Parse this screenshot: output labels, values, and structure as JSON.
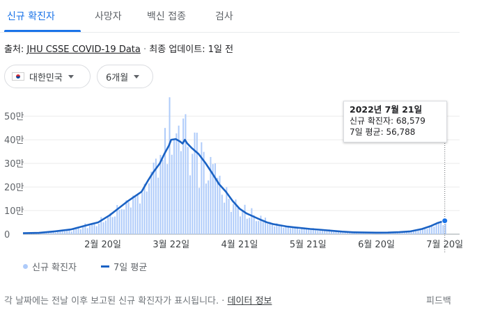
{
  "tabs": [
    {
      "label": "신규 확진자",
      "active": true
    },
    {
      "label": "사망자",
      "active": false
    },
    {
      "label": "백신 접종",
      "active": false
    },
    {
      "label": "검사",
      "active": false
    }
  ],
  "source": {
    "prefix": "출처:",
    "link": "JHU CSSE COVID-19 Data",
    "separator": "·",
    "updated": "최종 업데이트: 1일 전"
  },
  "filters": {
    "region": "대한민국",
    "range": "6개월"
  },
  "tooltip": {
    "date": "2022년 7월 21일",
    "cases_label": "신규 확진자:",
    "cases_value": "68,579",
    "avg_label": "7일 평균:",
    "avg_value": "56,788"
  },
  "legend": {
    "bars": "신규 확진자",
    "line": "7일 평균"
  },
  "footer": {
    "note": "각 날짜에는 전날 이후 보고된 신규 확진자가 표시됩니다.",
    "dot": "·",
    "link": "데이터 정보",
    "feedback": "피드백"
  },
  "colors": {
    "accent": "#1a73e8",
    "bars": "#aecbfa",
    "line": "#1a62c4"
  },
  "chart_data": {
    "type": "bar",
    "series_types": {
      "신규 확진자": "bar",
      "7일 평균": "line"
    },
    "ylim": [
      0,
      580000
    ],
    "yticks": [
      0,
      100000,
      200000,
      300000,
      400000,
      500000
    ],
    "ytick_labels": [
      "0",
      "10만",
      "20만",
      "30만",
      "40만",
      "50만"
    ],
    "xticks": [
      "2월 20일",
      "3월 22일",
      "4월 21일",
      "5월 21일",
      "6월 20일",
      "7월 20일"
    ],
    "xtick_day_index": [
      35,
      65,
      95,
      125,
      155,
      185
    ],
    "start_date": "2022-01-16",
    "avg_points": [
      [
        0,
        4000
      ],
      [
        7,
        5500
      ],
      [
        14,
        12000
      ],
      [
        21,
        20000
      ],
      [
        28,
        38000
      ],
      [
        33,
        50000
      ],
      [
        38,
        80000
      ],
      [
        42,
        110000
      ],
      [
        46,
        140000
      ],
      [
        49,
        160000
      ],
      [
        52,
        180000
      ],
      [
        55,
        230000
      ],
      [
        57,
        260000
      ],
      [
        60,
        300000
      ],
      [
        62,
        340000
      ],
      [
        64,
        375000
      ],
      [
        65,
        400000
      ],
      [
        67,
        403000
      ],
      [
        69,
        392000
      ],
      [
        70,
        384000
      ],
      [
        71,
        400000
      ],
      [
        72,
        385000
      ],
      [
        74,
        365000
      ],
      [
        77,
        340000
      ],
      [
        80,
        302000
      ],
      [
        83,
        258000
      ],
      [
        86,
        212000
      ],
      [
        89,
        180000
      ],
      [
        92,
        140000
      ],
      [
        95,
        108000
      ],
      [
        98,
        88000
      ],
      [
        101,
        75000
      ],
      [
        104,
        62000
      ],
      [
        107,
        50000
      ],
      [
        110,
        42000
      ],
      [
        113,
        37000
      ],
      [
        116,
        32000
      ],
      [
        119,
        29000
      ],
      [
        122,
        26000
      ],
      [
        126,
        22000
      ],
      [
        130,
        19000
      ],
      [
        135,
        15000
      ],
      [
        140,
        11000
      ],
      [
        145,
        8000
      ],
      [
        150,
        7000
      ],
      [
        155,
        6500
      ],
      [
        160,
        6800
      ],
      [
        165,
        8500
      ],
      [
        170,
        12000
      ],
      [
        175,
        22000
      ],
      [
        179,
        35000
      ],
      [
        182,
        48000
      ],
      [
        185,
        56788
      ]
    ],
    "bar_spikes": [
      {
        "day": 56,
        "value": 265000
      },
      {
        "day": 58,
        "value": 320000
      },
      {
        "day": 62,
        "value": 450000
      },
      {
        "day": 64,
        "value": 620000
      },
      {
        "day": 66,
        "value": 400000
      },
      {
        "day": 68,
        "value": 460000
      },
      {
        "day": 70,
        "value": 490000
      },
      {
        "day": 72,
        "value": 370000
      },
      {
        "day": 76,
        "value": 430000
      },
      {
        "day": 84,
        "value": 300000
      },
      {
        "day": 90,
        "value": 150000
      },
      {
        "day": 100,
        "value": 110000
      },
      {
        "day": 106,
        "value": 70000
      },
      {
        "day": 185,
        "value": 68579
      }
    ]
  }
}
